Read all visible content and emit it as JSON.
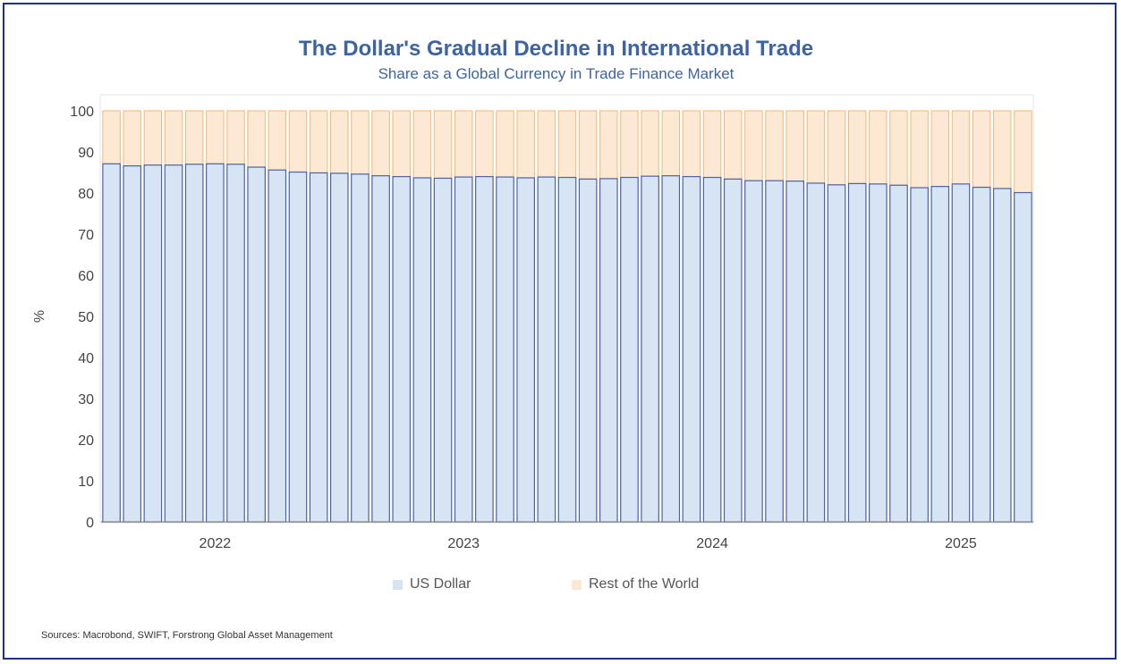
{
  "title": "The Dollar's Gradual Decline in International Trade",
  "subtitle": "Share as a Global Currency in Trade Finance Market",
  "source": "Sources: Macrobond, SWIFT, Forstrong Global Asset Management",
  "colors": {
    "title": "#3d64a0",
    "usd_fill": "#d6e4f3",
    "usd_stroke": "#4a63a7",
    "row_fill": "#fde8d4",
    "row_stroke": "#f2b77a",
    "frame": "#1f2f8a"
  },
  "chart_data": {
    "type": "bar",
    "stacked": true,
    "ylabel": "%",
    "ylim": [
      0,
      100
    ],
    "yticks": [
      0,
      10,
      20,
      30,
      40,
      50,
      60,
      70,
      80,
      90,
      100
    ],
    "x_labels": [
      "2022",
      "2023",
      "2024",
      "2025"
    ],
    "x_label_positions": [
      5.5,
      17.5,
      29.5,
      41.5
    ],
    "series": [
      {
        "name": "US Dollar",
        "values": [
          87.1,
          86.6,
          86.8,
          86.8,
          87.0,
          87.1,
          87.0,
          86.3,
          85.6,
          85.1,
          84.9,
          84.8,
          84.6,
          84.2,
          84.0,
          83.7,
          83.6,
          83.9,
          84.0,
          83.9,
          83.7,
          83.9,
          83.8,
          83.4,
          83.5,
          83.8,
          84.1,
          84.2,
          84.0,
          83.8,
          83.4,
          83.0,
          83.0,
          82.9,
          82.4,
          82.0,
          82.3,
          82.2,
          81.9,
          81.3,
          81.6,
          82.2,
          81.4,
          81.1,
          80.1
        ]
      },
      {
        "name": "Rest of the World",
        "values": [
          12.9,
          13.4,
          13.2,
          13.2,
          13.0,
          12.9,
          13.0,
          13.7,
          14.4,
          14.9,
          15.1,
          15.2,
          15.4,
          15.8,
          16.0,
          16.3,
          16.4,
          16.1,
          16.0,
          16.1,
          16.3,
          16.1,
          16.2,
          16.6,
          16.5,
          16.2,
          15.9,
          15.8,
          16.0,
          16.2,
          16.6,
          17.0,
          17.0,
          17.1,
          17.6,
          18.0,
          17.7,
          17.8,
          18.1,
          18.7,
          18.4,
          17.8,
          18.6,
          18.9,
          19.9
        ]
      }
    ]
  }
}
